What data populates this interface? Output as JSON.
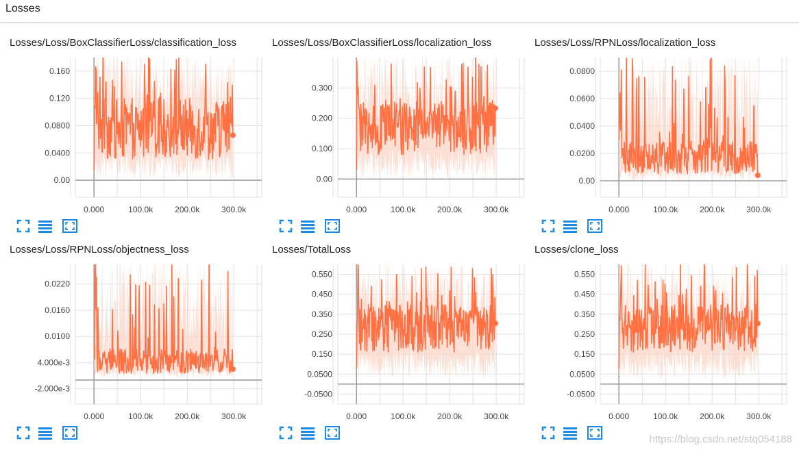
{
  "header": {
    "title": "Losses"
  },
  "colors": {
    "line": "#ff7043",
    "band": "#fbd6c8",
    "axis": "#9e9e9e",
    "grid": "#e0e0e0",
    "icon": "#1e88e5"
  },
  "icons": [
    "fit-domain-icon",
    "toggle-log-scale-icon",
    "expand-chart-icon"
  ],
  "watermark": "https://blog.csdn.net/stq054188",
  "chart_data": [
    {
      "type": "line",
      "title": "Losses/Loss/BoxClassifierLoss/classification_loss",
      "ylim": [
        -0.025,
        0.18
      ],
      "xlim": [
        -40000,
        360000
      ],
      "yticks": [
        0.0,
        0.04,
        0.08,
        0.12,
        0.16
      ],
      "ytick_labels": [
        "0.00",
        "0.0400",
        "0.0800",
        "0.120",
        "0.160"
      ],
      "xticks": [
        0,
        100000,
        200000,
        300000
      ],
      "xtick_labels": [
        "0.000",
        "100.0k",
        "200.0k",
        "300.0k"
      ],
      "grid": true,
      "series": [
        {
          "base": 0.075,
          "amp": 0.045,
          "spike": 0.19,
          "decay": 0.015,
          "end": 0.066,
          "band_lo": 0.0,
          "band_hi": 0.19
        }
      ]
    },
    {
      "type": "line",
      "title": "Losses/Loss/BoxClassifierLoss/localization_loss",
      "ylim": [
        -0.06,
        0.4
      ],
      "xlim": [
        -40000,
        360000
      ],
      "yticks": [
        0.0,
        0.1,
        0.2,
        0.3
      ],
      "ytick_labels": [
        "0.00",
        "0.100",
        "0.200",
        "0.300"
      ],
      "xticks": [
        0,
        100000,
        200000,
        300000
      ],
      "xtick_labels": [
        "0.000",
        "100.0k",
        "200.0k",
        "300.0k"
      ],
      "grid": true,
      "series": [
        {
          "base": 0.17,
          "amp": 0.09,
          "spike": 0.42,
          "decay": 0.03,
          "end": 0.233,
          "band_lo": 0.0,
          "band_hi": 0.42
        }
      ]
    },
    {
      "type": "line",
      "title": "Losses/Loss/RPNLoss/localization_loss",
      "ylim": [
        -0.012,
        0.09
      ],
      "xlim": [
        -40000,
        360000
      ],
      "yticks": [
        0.0,
        0.02,
        0.04,
        0.06,
        0.08
      ],
      "ytick_labels": [
        "0.00",
        "0.0200",
        "0.0400",
        "0.0600",
        "0.0800"
      ],
      "xticks": [
        0,
        100000,
        200000,
        300000
      ],
      "xtick_labels": [
        "0.000",
        "100.0k",
        "200.0k",
        "300.0k"
      ],
      "grid": true,
      "series": [
        {
          "base": 0.017,
          "amp": 0.012,
          "spike": 0.095,
          "decay": 0.03,
          "end": 0.004,
          "band_lo": 0.0,
          "band_hi": 0.095
        }
      ]
    },
    {
      "type": "line",
      "title": "Losses/Loss/RPNLoss/objectness_loss",
      "ylim": [
        -0.0055,
        0.0265
      ],
      "xlim": [
        -40000,
        360000
      ],
      "yticks": [
        -0.002,
        0.004,
        0.01,
        0.016,
        0.022
      ],
      "ytick_labels": [
        "-2.000e-3",
        "4.000e-3",
        "0.0100",
        "0.0160",
        "0.0220"
      ],
      "xticks": [
        0,
        100000,
        200000,
        300000
      ],
      "xtick_labels": [
        "0.000",
        "100.0k",
        "200.0k",
        "300.0k"
      ],
      "grid": true,
      "series": [
        {
          "base": 0.0043,
          "amp": 0.0028,
          "spike": 0.028,
          "decay": 0.008,
          "end": 0.0025,
          "band_lo": 0.0005,
          "band_hi": 0.028
        }
      ]
    },
    {
      "type": "line",
      "title": "Losses/TotalLoss",
      "ylim": [
        -0.1,
        0.6
      ],
      "xlim": [
        -40000,
        360000
      ],
      "yticks": [
        -0.05,
        0.05,
        0.15,
        0.25,
        0.35,
        0.45,
        0.55
      ],
      "ytick_labels": [
        "-0.0500",
        "0.0500",
        "0.150",
        "0.250",
        "0.350",
        "0.450",
        "0.550"
      ],
      "xticks": [
        0,
        100000,
        200000,
        300000
      ],
      "xtick_labels": [
        "0.000",
        "100.0k",
        "200.0k",
        "300.0k"
      ],
      "grid": true,
      "series": [
        {
          "base": 0.28,
          "amp": 0.12,
          "spike": 0.62,
          "decay": 0.08,
          "end": 0.304,
          "band_lo": 0.02,
          "band_hi": 0.62
        }
      ]
    },
    {
      "type": "line",
      "title": "Losses/clone_loss",
      "ylim": [
        -0.1,
        0.6
      ],
      "xlim": [
        -40000,
        360000
      ],
      "yticks": [
        -0.05,
        0.05,
        0.15,
        0.25,
        0.35,
        0.45,
        0.55
      ],
      "ytick_labels": [
        "-0.0500",
        "0.0500",
        "0.150",
        "0.250",
        "0.350",
        "0.450",
        "0.550"
      ],
      "xticks": [
        0,
        100000,
        200000,
        300000
      ],
      "xtick_labels": [
        "0.000",
        "100.0k",
        "200.0k",
        "300.0k"
      ],
      "grid": true,
      "series": [
        {
          "base": 0.28,
          "amp": 0.12,
          "spike": 0.62,
          "decay": 0.08,
          "end": 0.304,
          "band_lo": 0.02,
          "band_hi": 0.62
        }
      ]
    }
  ]
}
